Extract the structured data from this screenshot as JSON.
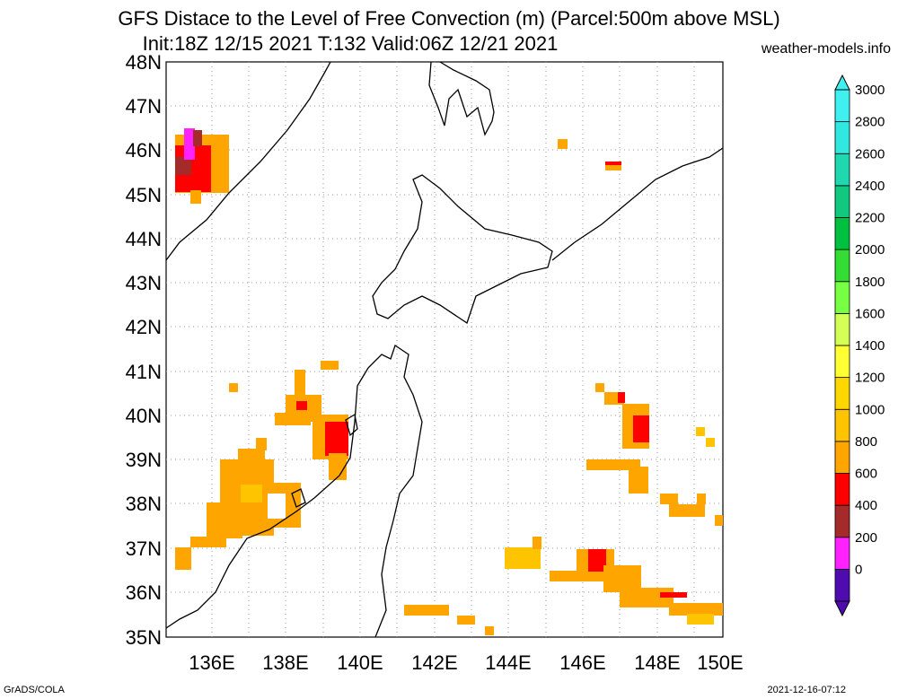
{
  "title": {
    "line1": "GFS Distace to the Level of Free Convection (m) (Parcel:500m above MSL)",
    "line2": "Init:18Z 12/15 2021 T:132 Valid:06Z 12/21 2021"
  },
  "source_site": "weather-models.info",
  "footer": {
    "left": "GrADS/COLA",
    "right": "2021-12-16-07:12"
  },
  "map": {
    "lat_labels": [
      "48N",
      "47N",
      "46N",
      "45N",
      "44N",
      "43N",
      "42N",
      "41N",
      "40N",
      "39N",
      "38N",
      "37N",
      "36N",
      "35N"
    ],
    "lon_labels": [
      "136E",
      "138E",
      "140E",
      "142E",
      "144E",
      "146E",
      "148E",
      "150E"
    ],
    "lat_range": [
      35,
      48
    ],
    "lon_range": [
      135,
      150
    ],
    "grid": true
  },
  "colorbar": {
    "labels": [
      "3000",
      "2800",
      "2600",
      "2400",
      "2200",
      "2000",
      "1800",
      "1600",
      "1400",
      "1200",
      "1000",
      "800",
      "600",
      "400",
      "200",
      "0"
    ],
    "colors": [
      "#4f0bb0",
      "#ff22ff",
      "#a52a2a",
      "#ff0000",
      "#ffa500",
      "#ffc400",
      "#ffd700",
      "#ffff33",
      "#d4ff55",
      "#77ff44",
      "#33dd33",
      "#00c040",
      "#10c880",
      "#20d8b0",
      "#30e8e0",
      "#40f0f0"
    ]
  }
}
